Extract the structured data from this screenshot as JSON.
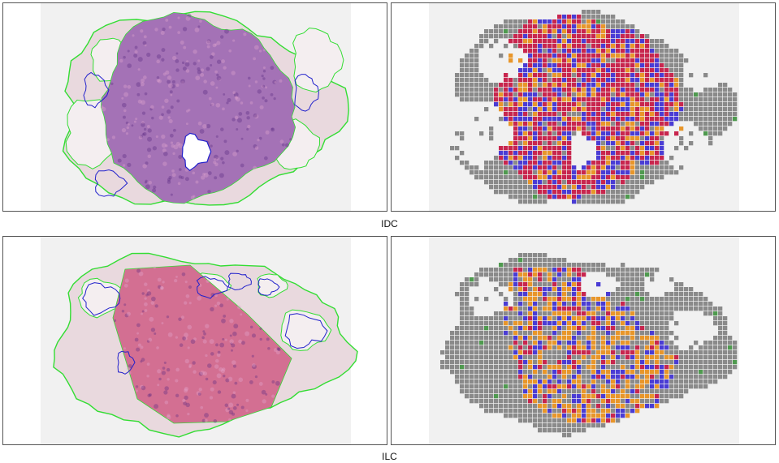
{
  "figure": {
    "rows": [
      {
        "caption": "IDC",
        "panels": [
          {
            "kind": "he-overlay",
            "tissue": "idc"
          },
          {
            "kind": "tile-heatmap",
            "tissue": "idc"
          }
        ]
      },
      {
        "caption": "ILC",
        "panels": [
          {
            "kind": "he-overlay",
            "tissue": "ilc"
          },
          {
            "kind": "tile-heatmap",
            "tissue": "ilc"
          }
        ]
      }
    ]
  },
  "colors": {
    "slide_bg": "#f1f1f1",
    "panel_border": "#555555",
    "stroma_he": "#e9d9de",
    "tumor_he_idc": "#a472b6",
    "tumor_he_ilc": "#d36f92",
    "contour_green": "#33dd33",
    "contour_blue": "#2222cc",
    "tile_gray": "#8a8a8a",
    "tile_red": "#c8264e",
    "tile_orange": "#e8962a",
    "tile_blue": "#4a3cd4",
    "tile_green": "#4f9a4f"
  }
}
